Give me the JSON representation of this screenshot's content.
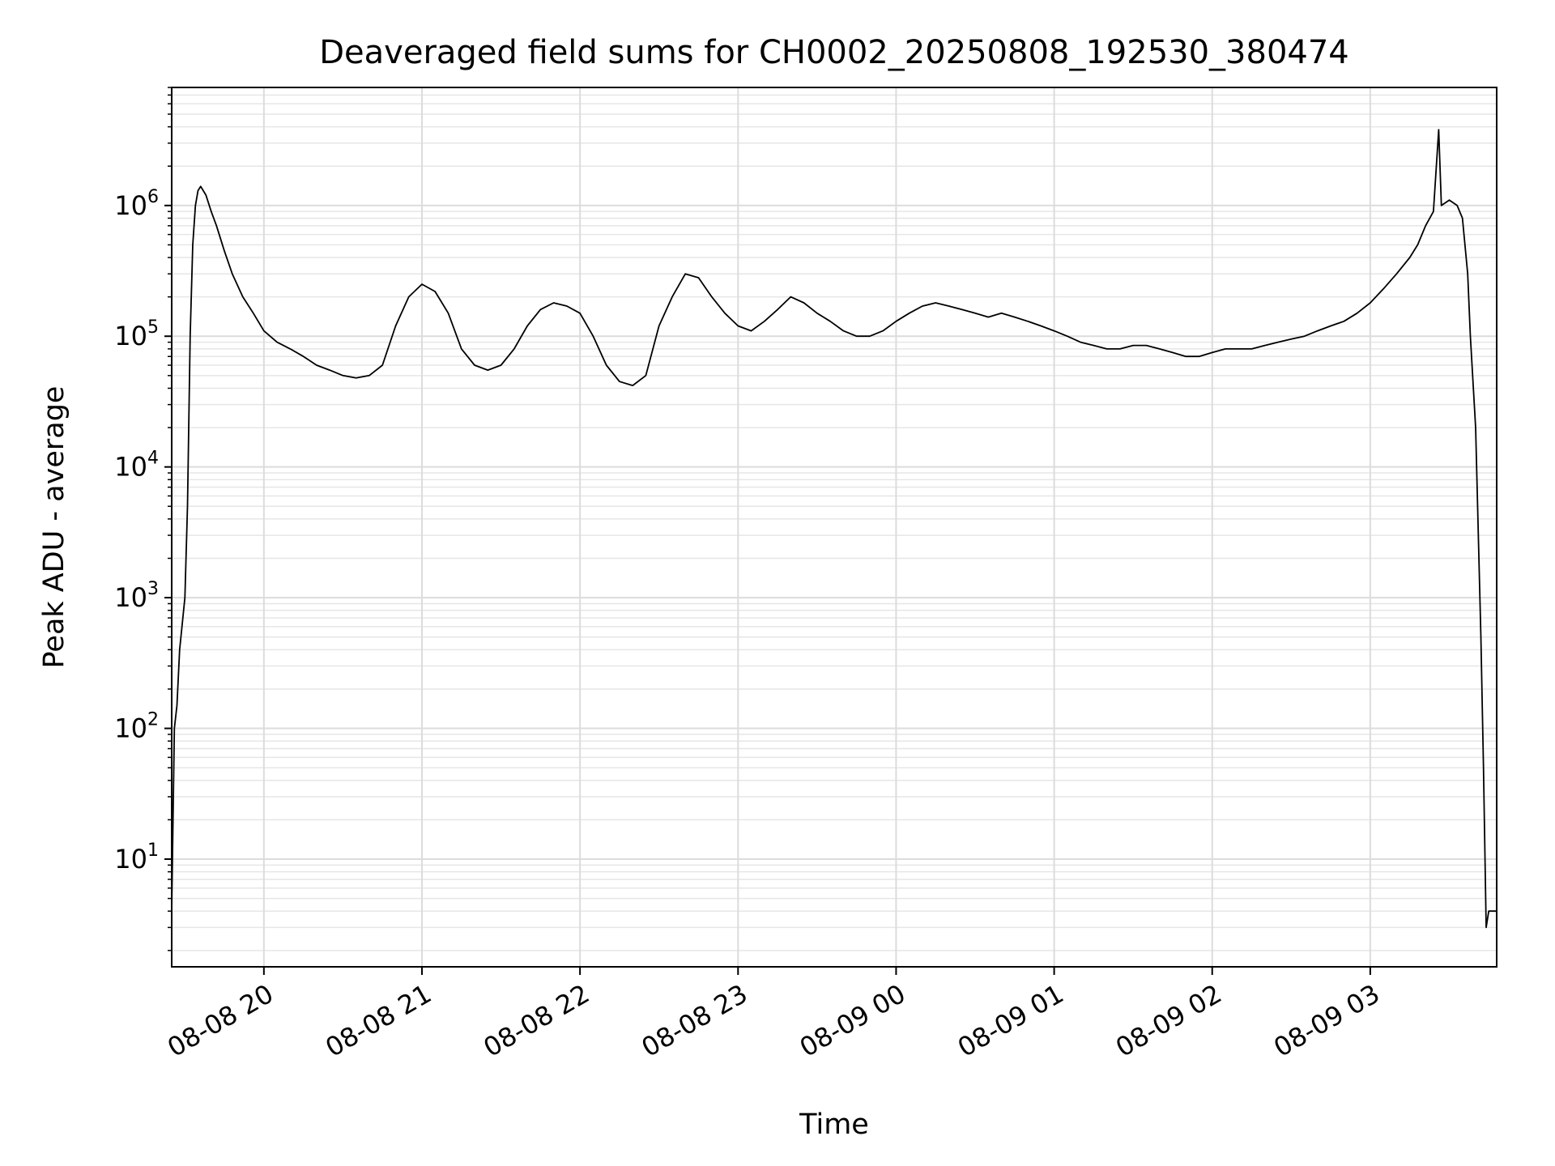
{
  "chart_data": {
    "type": "line",
    "title": "Deaveraged field sums for CH0002_20250808_192530_380474",
    "xlabel": "Time",
    "ylabel": "Peak ADU - average",
    "yscale": "log",
    "ylim": [
      1.5,
      8000000
    ],
    "xlim": [
      "2025-08-08 19:25",
      "2025-08-09 03:48"
    ],
    "grid": {
      "major": true,
      "minor_y": true
    },
    "x_ticks": [
      {
        "at": "2025-08-08 20:00",
        "label": "08-08 20"
      },
      {
        "at": "2025-08-08 21:00",
        "label": "08-08 21"
      },
      {
        "at": "2025-08-08 22:00",
        "label": "08-08 22"
      },
      {
        "at": "2025-08-08 23:00",
        "label": "08-08 23"
      },
      {
        "at": "2025-08-09 00:00",
        "label": "08-09 00"
      },
      {
        "at": "2025-08-09 01:00",
        "label": "08-09 01"
      },
      {
        "at": "2025-08-09 02:00",
        "label": "08-09 02"
      },
      {
        "at": "2025-08-09 03:00",
        "label": "08-09 03"
      }
    ],
    "y_ticks": [
      {
        "value": 10,
        "base": "10",
        "exp": "1"
      },
      {
        "value": 100,
        "base": "10",
        "exp": "2"
      },
      {
        "value": 1000,
        "base": "10",
        "exp": "3"
      },
      {
        "value": 10000,
        "base": "10",
        "exp": "4"
      },
      {
        "value": 100000,
        "base": "10",
        "exp": "5"
      },
      {
        "value": 1000000,
        "base": "10",
        "exp": "6"
      }
    ],
    "series": [
      {
        "color": "#000000",
        "points": [
          [
            "2025-08-08 19:25",
            4
          ],
          [
            "2025-08-08 19:26",
            100
          ],
          [
            "2025-08-08 19:27",
            150
          ],
          [
            "2025-08-08 19:28",
            400
          ],
          [
            "2025-08-08 19:30",
            1000
          ],
          [
            "2025-08-08 19:31",
            5000
          ],
          [
            "2025-08-08 19:32",
            100000
          ],
          [
            "2025-08-08 19:33",
            500000
          ],
          [
            "2025-08-08 19:34",
            1000000
          ],
          [
            "2025-08-08 19:35",
            1300000
          ],
          [
            "2025-08-08 19:36",
            1400000
          ],
          [
            "2025-08-08 19:38",
            1200000
          ],
          [
            "2025-08-08 19:40",
            900000
          ],
          [
            "2025-08-08 19:42",
            700000
          ],
          [
            "2025-08-08 19:45",
            450000
          ],
          [
            "2025-08-08 19:48",
            300000
          ],
          [
            "2025-08-08 19:52",
            200000
          ],
          [
            "2025-08-08 19:56",
            150000
          ],
          [
            "2025-08-08 20:00",
            110000
          ],
          [
            "2025-08-08 20:05",
            90000
          ],
          [
            "2025-08-08 20:10",
            80000
          ],
          [
            "2025-08-08 20:15",
            70000
          ],
          [
            "2025-08-08 20:20",
            60000
          ],
          [
            "2025-08-08 20:25",
            55000
          ],
          [
            "2025-08-08 20:30",
            50000
          ],
          [
            "2025-08-08 20:35",
            48000
          ],
          [
            "2025-08-08 20:40",
            50000
          ],
          [
            "2025-08-08 20:45",
            60000
          ],
          [
            "2025-08-08 20:50",
            120000
          ],
          [
            "2025-08-08 20:55",
            200000
          ],
          [
            "2025-08-08 21:00",
            250000
          ],
          [
            "2025-08-08 21:05",
            220000
          ],
          [
            "2025-08-08 21:10",
            150000
          ],
          [
            "2025-08-08 21:15",
            80000
          ],
          [
            "2025-08-08 21:20",
            60000
          ],
          [
            "2025-08-08 21:25",
            55000
          ],
          [
            "2025-08-08 21:30",
            60000
          ],
          [
            "2025-08-08 21:35",
            80000
          ],
          [
            "2025-08-08 21:40",
            120000
          ],
          [
            "2025-08-08 21:45",
            160000
          ],
          [
            "2025-08-08 21:50",
            180000
          ],
          [
            "2025-08-08 21:55",
            170000
          ],
          [
            "2025-08-08 22:00",
            150000
          ],
          [
            "2025-08-08 22:05",
            100000
          ],
          [
            "2025-08-08 22:10",
            60000
          ],
          [
            "2025-08-08 22:15",
            45000
          ],
          [
            "2025-08-08 22:20",
            42000
          ],
          [
            "2025-08-08 22:25",
            50000
          ],
          [
            "2025-08-08 22:30",
            120000
          ],
          [
            "2025-08-08 22:35",
            200000
          ],
          [
            "2025-08-08 22:40",
            300000
          ],
          [
            "2025-08-08 22:45",
            280000
          ],
          [
            "2025-08-08 22:50",
            200000
          ],
          [
            "2025-08-08 22:55",
            150000
          ],
          [
            "2025-08-08 23:00",
            120000
          ],
          [
            "2025-08-08 23:05",
            110000
          ],
          [
            "2025-08-08 23:10",
            130000
          ],
          [
            "2025-08-08 23:15",
            160000
          ],
          [
            "2025-08-08 23:20",
            200000
          ],
          [
            "2025-08-08 23:25",
            180000
          ],
          [
            "2025-08-08 23:30",
            150000
          ],
          [
            "2025-08-08 23:35",
            130000
          ],
          [
            "2025-08-08 23:40",
            110000
          ],
          [
            "2025-08-08 23:45",
            100000
          ],
          [
            "2025-08-08 23:50",
            100000
          ],
          [
            "2025-08-08 23:55",
            110000
          ],
          [
            "2025-08-09 00:00",
            130000
          ],
          [
            "2025-08-09 00:05",
            150000
          ],
          [
            "2025-08-09 00:10",
            170000
          ],
          [
            "2025-08-09 00:15",
            180000
          ],
          [
            "2025-08-09 00:20",
            170000
          ],
          [
            "2025-08-09 00:25",
            160000
          ],
          [
            "2025-08-09 00:30",
            150000
          ],
          [
            "2025-08-09 00:35",
            140000
          ],
          [
            "2025-08-09 00:40",
            150000
          ],
          [
            "2025-08-09 00:45",
            140000
          ],
          [
            "2025-08-09 00:50",
            130000
          ],
          [
            "2025-08-09 00:55",
            120000
          ],
          [
            "2025-08-09 01:00",
            110000
          ],
          [
            "2025-08-09 01:05",
            100000
          ],
          [
            "2025-08-09 01:10",
            90000
          ],
          [
            "2025-08-09 01:15",
            85000
          ],
          [
            "2025-08-09 01:20",
            80000
          ],
          [
            "2025-08-09 01:25",
            80000
          ],
          [
            "2025-08-09 01:30",
            85000
          ],
          [
            "2025-08-09 01:35",
            85000
          ],
          [
            "2025-08-09 01:40",
            80000
          ],
          [
            "2025-08-09 01:45",
            75000
          ],
          [
            "2025-08-09 01:50",
            70000
          ],
          [
            "2025-08-09 01:55",
            70000
          ],
          [
            "2025-08-09 02:00",
            75000
          ],
          [
            "2025-08-09 02:05",
            80000
          ],
          [
            "2025-08-09 02:10",
            80000
          ],
          [
            "2025-08-09 02:15",
            80000
          ],
          [
            "2025-08-09 02:20",
            85000
          ],
          [
            "2025-08-09 02:25",
            90000
          ],
          [
            "2025-08-09 02:30",
            95000
          ],
          [
            "2025-08-09 02:35",
            100000
          ],
          [
            "2025-08-09 02:40",
            110000
          ],
          [
            "2025-08-09 02:45",
            120000
          ],
          [
            "2025-08-09 02:50",
            130000
          ],
          [
            "2025-08-09 02:55",
            150000
          ],
          [
            "2025-08-09 03:00",
            180000
          ],
          [
            "2025-08-09 03:05",
            230000
          ],
          [
            "2025-08-09 03:10",
            300000
          ],
          [
            "2025-08-09 03:15",
            400000
          ],
          [
            "2025-08-09 03:18",
            500000
          ],
          [
            "2025-08-09 03:21",
            700000
          ],
          [
            "2025-08-09 03:24",
            900000
          ],
          [
            "2025-08-09 03:26",
            3800000
          ],
          [
            "2025-08-09 03:27",
            1000000
          ],
          [
            "2025-08-09 03:30",
            1100000
          ],
          [
            "2025-08-09 03:33",
            1000000
          ],
          [
            "2025-08-09 03:35",
            800000
          ],
          [
            "2025-08-09 03:37",
            300000
          ],
          [
            "2025-08-09 03:38",
            100000
          ],
          [
            "2025-08-09 03:40",
            20000
          ],
          [
            "2025-08-09 03:42",
            500
          ],
          [
            "2025-08-09 03:43",
            50
          ],
          [
            "2025-08-09 03:44",
            3
          ],
          [
            "2025-08-09 03:45",
            4
          ],
          [
            "2025-08-09 03:46",
            4
          ],
          [
            "2025-08-09 03:47",
            4
          ],
          [
            "2025-08-09 03:48",
            4
          ]
        ]
      }
    ]
  }
}
